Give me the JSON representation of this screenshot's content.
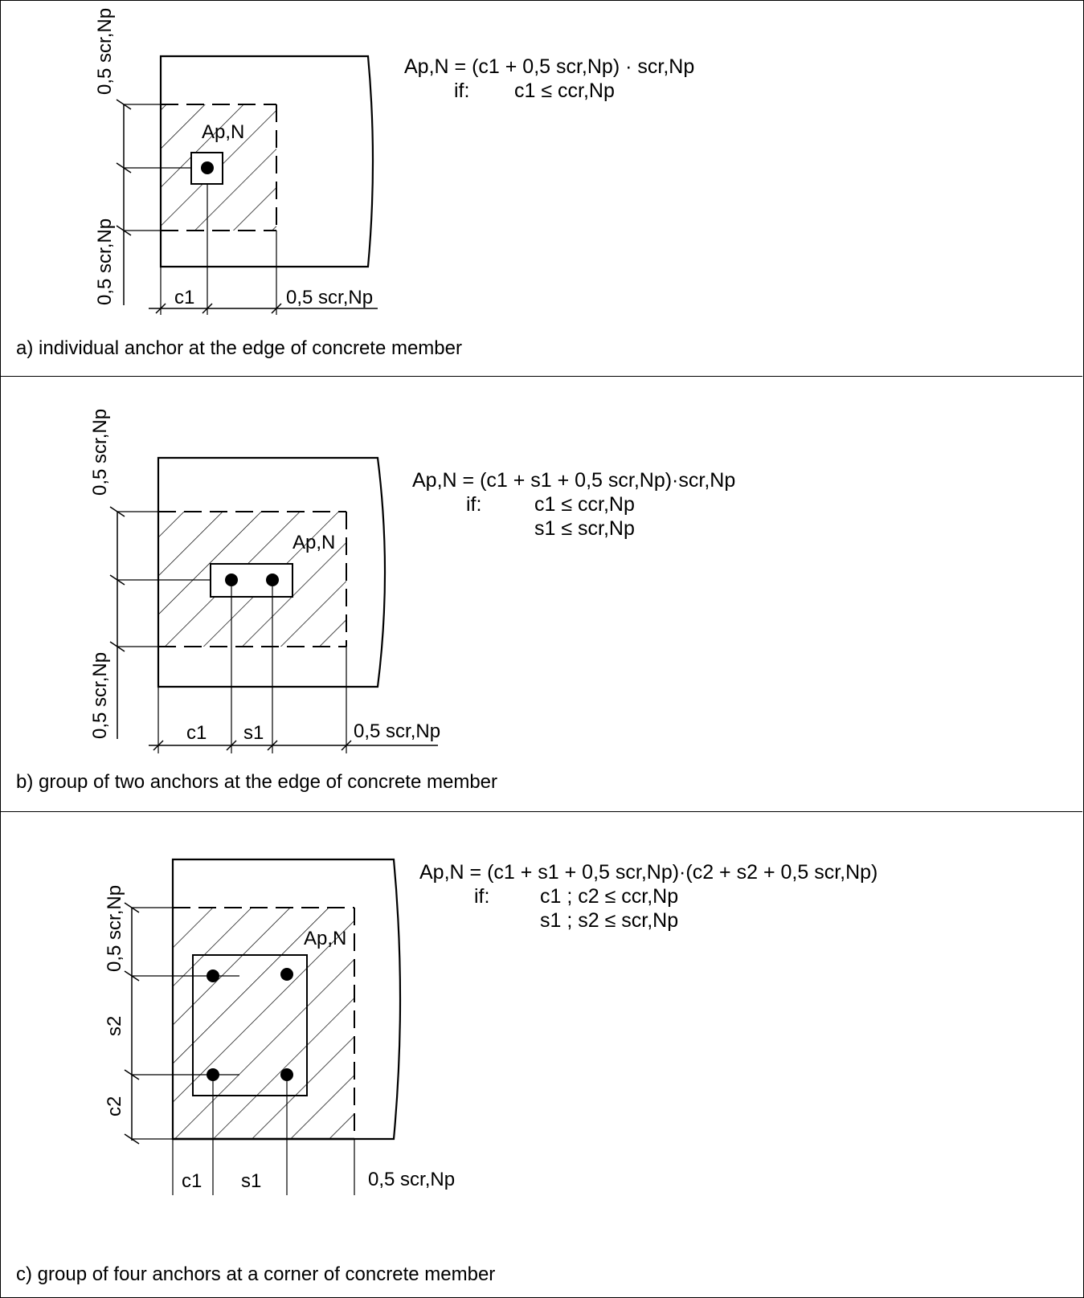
{
  "panels": [
    {
      "caption": "a) individual anchor at the edge of concrete member",
      "area_label": "Ap,N",
      "eq_main": "Ap,N = (c1 + 0,5 scr,Np) · scr,Np",
      "eq_if": "if:",
      "eq_cond1": "c1 ≤ ccr,Np",
      "dim_left_top": "0,5 scr,Np",
      "dim_left_bottom": "0,5 scr,Np",
      "dim_c1": "c1",
      "dim_right": "0,5 scr,Np"
    },
    {
      "caption": "b) group of two anchors at the edge of concrete member",
      "area_label": "Ap,N",
      "eq_main": "Ap,N = (c1 + s1 + 0,5 scr,Np)·scr,Np",
      "eq_if": "if:",
      "eq_cond1": "c1 ≤ ccr,Np",
      "eq_cond2": "s1 ≤ scr,Np",
      "dim_left_top": "0,5 scr,Np",
      "dim_left_bottom": "0,5 scr,Np",
      "dim_c1": "c1",
      "dim_s1": "s1",
      "dim_right": "0,5 scr,Np"
    },
    {
      "caption": "c) group of four anchors at a corner of concrete member",
      "area_label": "Ap,N",
      "eq_main": "Ap,N = (c1 + s1 + 0,5 scr,Np)·(c2 + s2 + 0,5 scr,Np)",
      "eq_if": "if:",
      "eq_cond1": "c1 ; c2 ≤ ccr,Np",
      "eq_cond2": "s1 ; s2 ≤ scr,Np",
      "dim_left_top": "0,5 scr,Np",
      "dim_s2": "s2",
      "dim_c2": "c2",
      "dim_c1": "c1",
      "dim_s1": "s1",
      "dim_right": "0,5 scr,Np"
    }
  ]
}
